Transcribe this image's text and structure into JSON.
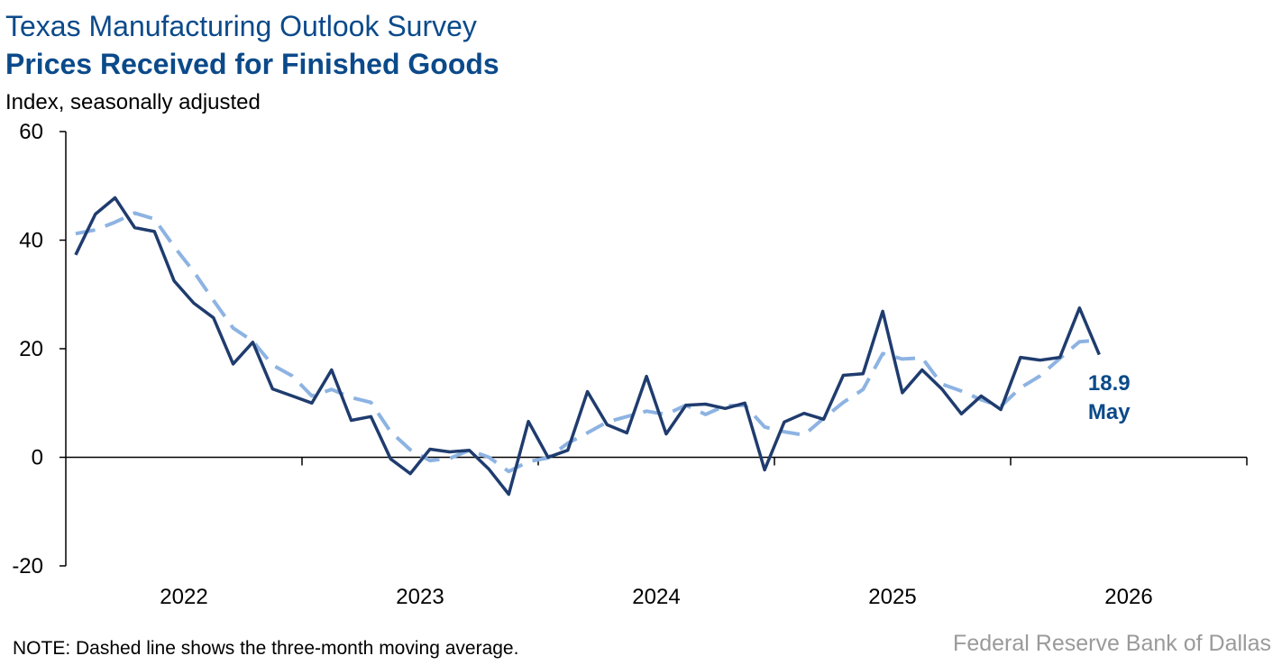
{
  "chart_data": {
    "type": "line",
    "title": "Texas Manufacturing Outlook Survey",
    "subtitle": "Prices Received for Finished Goods",
    "y_label": "Index, seasonally adjusted",
    "note": "NOTE: Dashed line shows the three-month moving average.",
    "source": "Federal Reserve Bank of Dallas",
    "annotation": "May",
    "x": [
      "2022-01",
      "2022-02",
      "2022-03",
      "2022-04",
      "2022-05",
      "2022-06",
      "2022-07",
      "2022-08",
      "2022-09",
      "2022-10",
      "2022-11",
      "2022-12",
      "2023-01",
      "2023-02",
      "2023-03",
      "2023-04",
      "2023-05",
      "2023-06",
      "2023-07",
      "2023-08",
      "2023-09",
      "2023-10",
      "2023-11",
      "2023-12",
      "2024-01",
      "2024-02",
      "2024-03",
      "2024-04",
      "2024-05",
      "2024-06",
      "2024-07",
      "2024-08",
      "2024-09",
      "2024-10",
      "2024-11",
      "2024-12",
      "2025-01",
      "2025-02",
      "2025-03",
      "2025-04",
      "2025-05",
      "2025-06",
      "2025-07",
      "2025-08",
      "2025-09",
      "2025-10",
      "2025-11",
      "2025-12",
      "2026-01",
      "2026-02",
      "2026-03",
      "2026-04",
      "2026-05"
    ],
    "series": [
      {
        "color": "#1f3c6e",
        "dashed": false,
        "values": [
          37.3,
          44.8,
          47.8,
          42.3,
          41.6,
          32.5,
          28.4,
          25.7,
          17.2,
          21.2,
          12.6,
          11.3,
          10.0,
          16.1,
          6.8,
          7.5,
          -0.3,
          -3.0,
          1.5,
          1.0,
          1.3,
          -2.2,
          -6.8,
          6.6,
          0,
          1.3,
          12.1,
          6.0,
          4.5,
          14.9,
          4.3,
          9.6,
          9.8,
          9.0,
          10.0,
          -2.3,
          6.5,
          8.1,
          7.0,
          15.1,
          15.4,
          26.9,
          11.9,
          16.1,
          12.6,
          8.0,
          11.3,
          8.8,
          18.4,
          17.9,
          18.4,
          27.5,
          18.9
        ]
      },
      {
        "color": "#8db3e2",
        "dashed": true,
        "values": [
          41.2,
          41.9,
          43.3,
          45.0,
          43.9,
          38.8,
          34.2,
          28.9,
          23.8,
          21.4,
          17.0,
          15.0,
          11.3,
          12.5,
          11.0,
          10.1,
          4.7,
          1.4,
          -0.6,
          -0.2,
          1.3,
          0.0,
          -2.6,
          -0.8,
          -0.1,
          2.6,
          4.5,
          6.5,
          7.5,
          8.5,
          7.9,
          9.6,
          7.9,
          9.5,
          9.6,
          5.6,
          4.7,
          4.1,
          7.2,
          10.1,
          12.5,
          19.1,
          18.1,
          18.3,
          13.5,
          12.2,
          10.6,
          9.4,
          12.8,
          15.0,
          18.2,
          21.3,
          21.6
        ]
      }
    ],
    "xlim": [
      2022,
      2027
    ],
    "xticks": [
      2022,
      2023,
      2024,
      2025,
      2026
    ],
    "ylim": [
      -20,
      60
    ],
    "yticks": [
      -20,
      0,
      20,
      40,
      60
    ]
  }
}
